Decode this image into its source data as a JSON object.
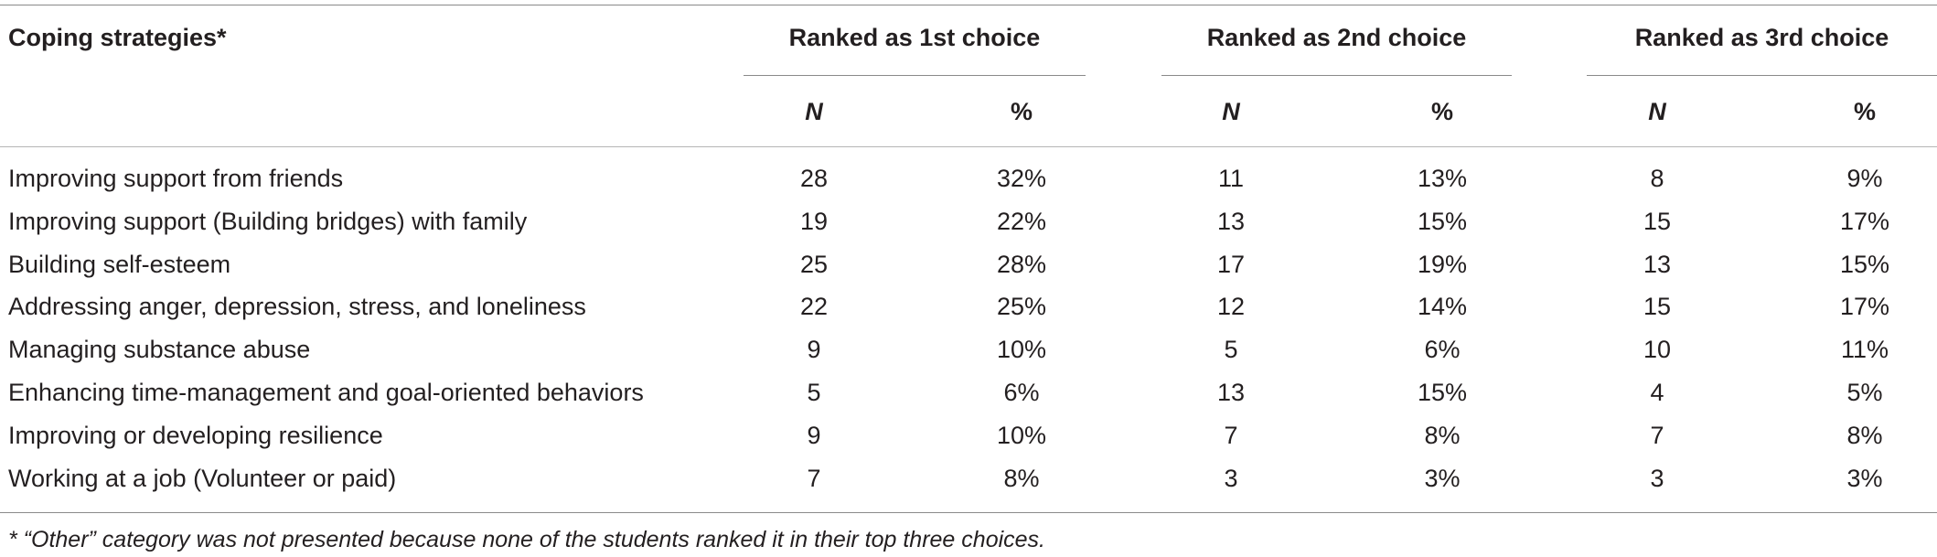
{
  "table": {
    "header": {
      "strategy_label": "Coping strategies*",
      "groups": [
        "Ranked as 1st choice",
        "Ranked as 2nd choice",
        "Ranked as 3rd choice"
      ],
      "sub_n": "N",
      "sub_pct": "%"
    },
    "rows": [
      {
        "strategy": "Improving support from friends",
        "n1": "28",
        "p1": "32%",
        "n2": "11",
        "p2": "13%",
        "n3": "8",
        "p3": "9%"
      },
      {
        "strategy": "Improving support (Building bridges) with family",
        "n1": "19",
        "p1": "22%",
        "n2": "13",
        "p2": "15%",
        "n3": "15",
        "p3": "17%"
      },
      {
        "strategy": "Building self-esteem",
        "n1": "25",
        "p1": "28%",
        "n2": "17",
        "p2": "19%",
        "n3": "13",
        "p3": "15%"
      },
      {
        "strategy": "Addressing anger, depression, stress, and loneliness",
        "n1": "22",
        "p1": "25%",
        "n2": "12",
        "p2": "14%",
        "n3": "15",
        "p3": "17%"
      },
      {
        "strategy": "Managing substance abuse",
        "n1": "9",
        "p1": "10%",
        "n2": "5",
        "p2": "6%",
        "n3": "10",
        "p3": "11%"
      },
      {
        "strategy": "Enhancing time-management and goal-oriented behaviors",
        "n1": "5",
        "p1": "6%",
        "n2": "13",
        "p2": "15%",
        "n3": "4",
        "p3": "5%"
      },
      {
        "strategy": "Improving or developing resilience",
        "n1": "9",
        "p1": "10%",
        "n2": "7",
        "p2": "8%",
        "n3": "7",
        "p3": "8%"
      },
      {
        "strategy": "Working at a job (Volunteer or paid)",
        "n1": "7",
        "p1": "8%",
        "n2": "3",
        "p2": "3%",
        "n3": "3",
        "p3": "3%"
      }
    ],
    "footnote": "* “Other” category was not presented because none of the students ranked it in their top three choices."
  }
}
